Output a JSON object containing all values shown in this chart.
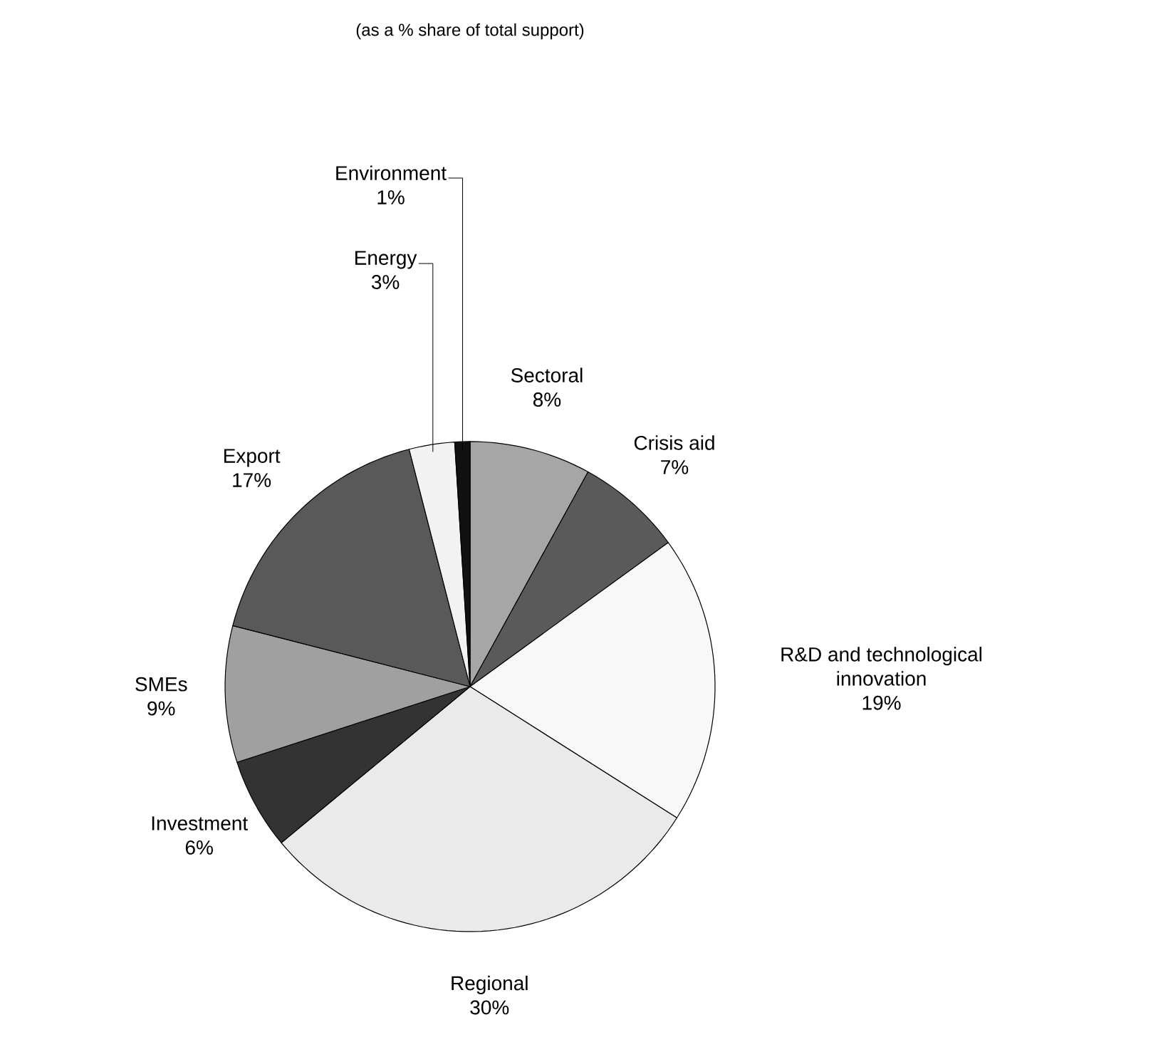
{
  "chart_data": {
    "type": "pie",
    "title": "(as a % share of total support)",
    "categories": [
      "Sectoral",
      "Crisis aid",
      "R&D and technological innovation",
      "Regional",
      "Investment",
      "SMEs",
      "Export",
      "Energy",
      "Environment"
    ],
    "values": [
      8,
      7,
      19,
      30,
      6,
      9,
      17,
      3,
      1
    ],
    "colors": [
      "#a6a6a6",
      "#5a5a5a",
      "#f8f8f8",
      "#eaeaea",
      "#333333",
      "#a0a0a0",
      "#595959",
      "#f2f2f2",
      "#111111"
    ],
    "value_labels": [
      "8%",
      "7%",
      "19%",
      "30%",
      "6%",
      "9%",
      "17%",
      "3%",
      "1%"
    ]
  }
}
